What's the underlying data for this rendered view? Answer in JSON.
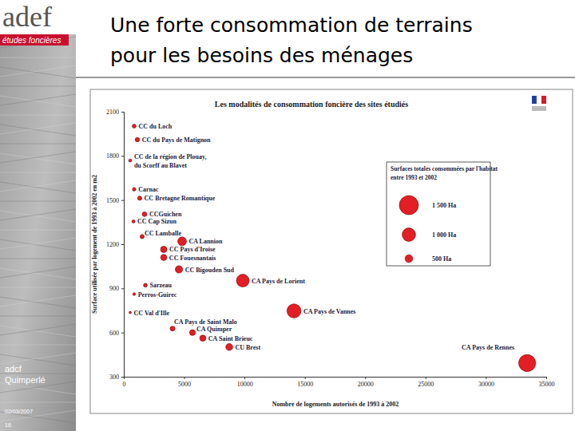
{
  "slide": {
    "logo": "adef",
    "logo_subtitle": "études foncières",
    "title_lines": [
      "Une forte consommation de terrains",
      "pour les besoins des ménages"
    ],
    "footer_org": "adcf Quimperlé",
    "footer_date": "02/03/2007",
    "page": 16
  },
  "chart_data": {
    "type": "scatter",
    "title": "Les modalités de consommation foncière des sites étudiés",
    "x_label": "Nombre de logements autorisés de 1993 à 2002",
    "y_label": "Surface utilisée par logement de 1993 à 2002 en m2",
    "color": "#e31e24",
    "marker": "circle",
    "xlim": [
      0,
      35000
    ],
    "xticks": [
      0,
      5000,
      10000,
      15000,
      20000,
      25000,
      30000,
      35000
    ],
    "ylim": [
      300,
      2100
    ],
    "yticks": [
      300,
      600,
      900,
      1200,
      1500,
      1800,
      2100
    ],
    "labels": [
      "CC du Loch",
      "CC du Pays de Matignon",
      "CC de la région de Plouay, du Scorff au Blavet",
      "Carnac",
      "CC Bretagne Romantique",
      "CCGuichen",
      "CC Cap Sizun",
      "CC Lamballe",
      "CA Lannion",
      "CC Pays d'Iroise",
      "CC Fouesnantais",
      "CC Bigouden Sud",
      "CA Pays de Lorient",
      "Sarzeau",
      "Perros-Guirec",
      "CA Pays de Vannes",
      "CC Val d'Ille",
      "CA Pays de Saint Malo",
      "CA Quimper",
      "CA Saint Brieuc",
      "CU Brest",
      "CA Pays de Rennes"
    ],
    "x": [
      860,
      1125,
      530,
      860,
      1320,
      1720,
      800,
      1520,
      4830,
      3310,
      3310,
      4570,
      9860,
      1790,
      860,
      14100,
      530,
      4040,
      5690,
      6550,
      8740,
      33420
    ],
    "values": [
      2002,
      1910,
      1769,
      1573,
      1513,
      1404,
      1355,
      1252,
      1220,
      1165,
      1110,
      1029,
      953,
      921,
      861,
      747,
      736,
      627,
      600,
      562,
      502,
      393
    ],
    "size": [
      172,
      215,
      94,
      135,
      200,
      241,
      108,
      190,
      589,
      386,
      367,
      470,
      940,
      165,
      74,
      1053,
      39,
      253,
      341,
      368,
      439,
      1313
    ],
    "size_legend": {
      "title_lines": [
        "Surfaces totales consommées par l'habitat",
        "entre 1993  et 2002"
      ],
      "values": [
        1500,
        1000,
        500
      ],
      "labels": [
        "1 500 Ha",
        "1 000 Ha",
        "500 Ha"
      ]
    }
  }
}
